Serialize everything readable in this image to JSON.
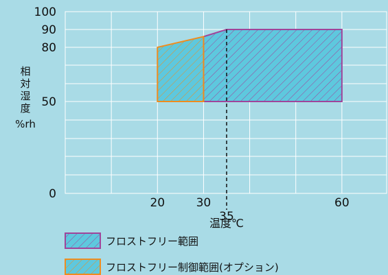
{
  "chart_data": {
    "type": "area",
    "title": "",
    "xlabel": "温度℃",
    "ylabel_chars": [
      "相",
      "対",
      "湿",
      "度"
    ],
    "ylabel_unit": "%rh",
    "x_ticks": [
      20,
      30,
      60
    ],
    "x_marker": {
      "value": 35,
      "label": "35",
      "style": "dashed"
    },
    "y_ticks": [
      0,
      50,
      80,
      90,
      100
    ],
    "xlim": [
      0,
      70
    ],
    "series": [
      {
        "name": "フロストフリー範囲",
        "color": "#a0449a",
        "fill": "#5ec8de",
        "polygon": [
          [
            30,
            50
          ],
          [
            30,
            86
          ],
          [
            35,
            90
          ],
          [
            60,
            90
          ],
          [
            60,
            50
          ]
        ]
      },
      {
        "name": "フロストフリー制御範囲(オプション)",
        "color": "#ef8c1e",
        "fill": "#5ec8de",
        "polygon": [
          [
            20,
            50
          ],
          [
            20,
            80
          ],
          [
            30,
            86
          ],
          [
            30,
            50
          ]
        ]
      }
    ],
    "grid": true,
    "legend_position": "bottom-left"
  }
}
